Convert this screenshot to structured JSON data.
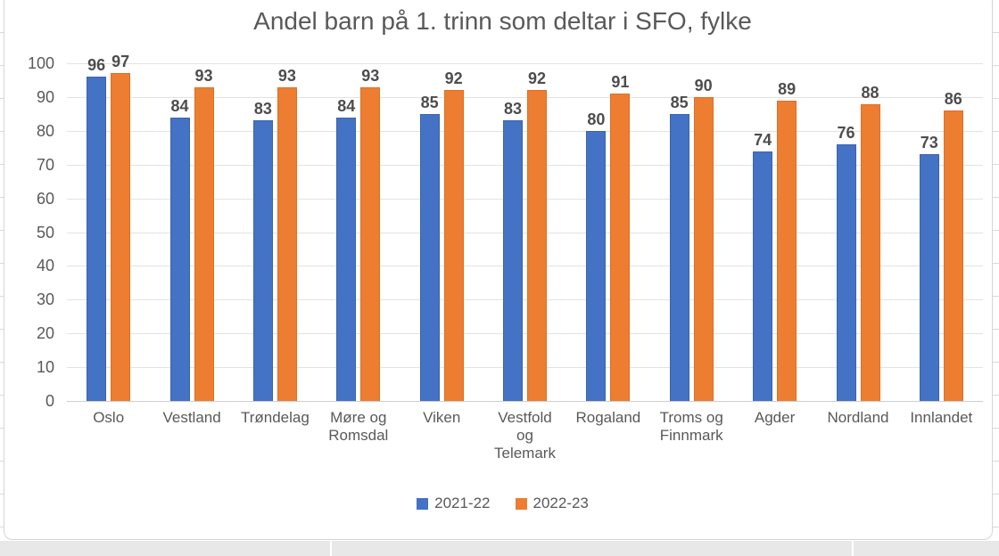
{
  "chart_data": {
    "type": "bar",
    "title": "Andel barn på 1. trinn som deltar i SFO, fylke",
    "categories": [
      "Oslo",
      "Vestland",
      "Trøndelag",
      "Møre og\nRomsdal",
      "Viken",
      "Vestfold\nog\nTelemark",
      "Rogaland",
      "Troms og\nFinnmark",
      "Agder",
      "Nordland",
      "Innlandet"
    ],
    "series": [
      {
        "name": "2021-22",
        "color": "#4472C4",
        "border_color": "#3B63AE",
        "values": [
          96,
          84,
          83,
          84,
          85,
          83,
          80,
          85,
          74,
          76,
          73
        ]
      },
      {
        "name": "2022-23",
        "color": "#ED7D31",
        "border_color": "#DE6F24",
        "values": [
          97,
          93,
          93,
          93,
          92,
          92,
          91,
          90,
          89,
          88,
          86
        ]
      }
    ],
    "ylim": [
      0,
      100
    ],
    "yticks": [
      0,
      10,
      20,
      30,
      40,
      50,
      60,
      70,
      80,
      90,
      100
    ],
    "grid": true,
    "data_labels": true,
    "legend_position": "bottom",
    "text_color": "#595959",
    "gridline_color": "#E2E2E2",
    "background": "#FFFFFF"
  }
}
